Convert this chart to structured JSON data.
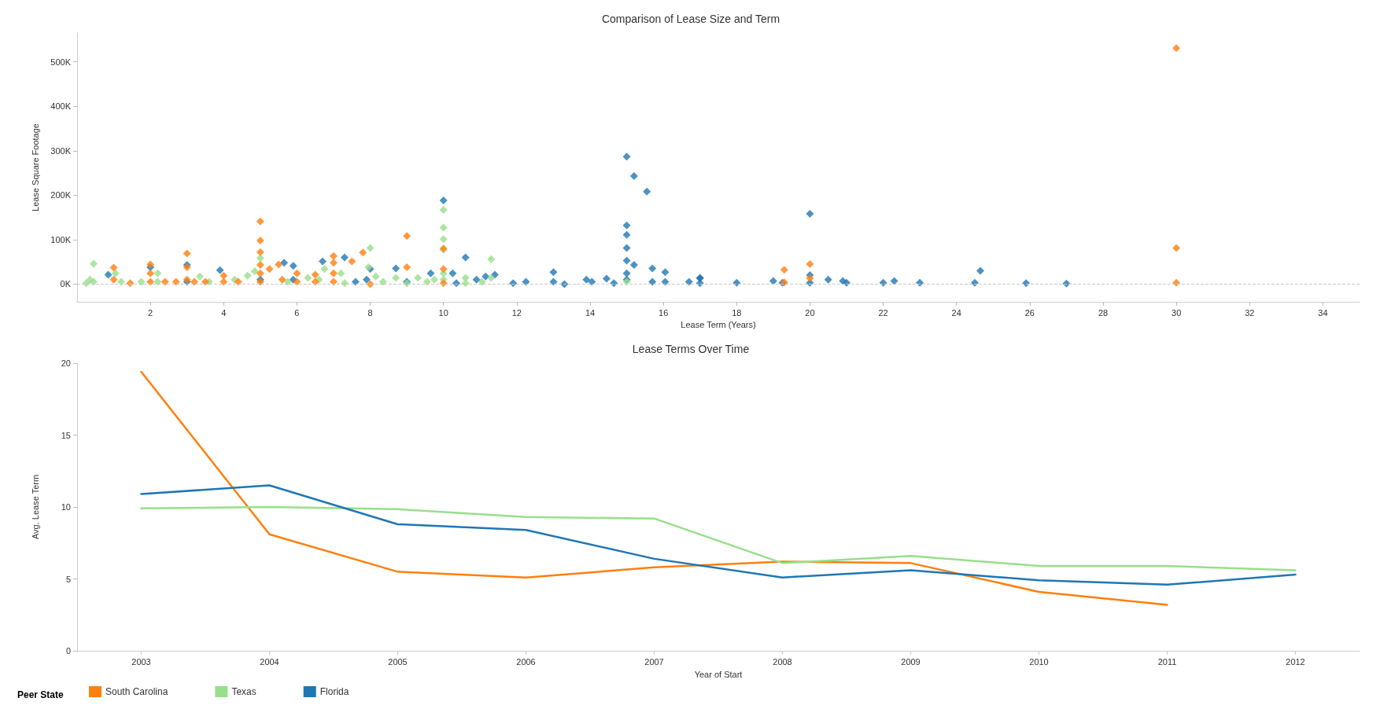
{
  "chart_data": [
    {
      "type": "scatter",
      "title": "Comparison of Lease Size and Term",
      "xlabel": "Lease Term (Years)",
      "ylabel": "Lease Square Footage",
      "marker": "diamond",
      "grid": false,
      "legend": false,
      "ref_lines": [
        {
          "axis": "y",
          "value": 0,
          "line_style": "dashed",
          "color": "#c8c8c8"
        }
      ],
      "xlim": [
        0,
        35
      ],
      "xticks": [
        2,
        4,
        6,
        8,
        10,
        12,
        14,
        16,
        18,
        20,
        22,
        24,
        26,
        28,
        30,
        32,
        34
      ],
      "ylim": [
        -40000,
        565000
      ],
      "yticks": [
        {
          "value": 0,
          "label": "0K"
        },
        {
          "value": 100000,
          "label": "100K"
        },
        {
          "value": 200000,
          "label": "200K"
        },
        {
          "value": 300000,
          "label": "300K"
        },
        {
          "value": 400000,
          "label": "400K"
        },
        {
          "value": 500000,
          "label": "500K"
        }
      ],
      "series": [
        {
          "color": "#1f77b4",
          "x": [
            0.85,
            2,
            3,
            3,
            3.9,
            5,
            5.65,
            5.9,
            5.9,
            6.7,
            7.3,
            7.6,
            8,
            7.9,
            8.7,
            9,
            9.65,
            10,
            10.25,
            10.35,
            10.6,
            10.9,
            11.15,
            11.4,
            11.9,
            12.25,
            13,
            13,
            13.3,
            13.9,
            14.05,
            14.45,
            14.65,
            15,
            15.2,
            15.55,
            15,
            15,
            15,
            15,
            15.2,
            15,
            15,
            15.7,
            15.7,
            16.05,
            16.05,
            16.7,
            17,
            17,
            17,
            18,
            19,
            19.25,
            20,
            20,
            20,
            20.5,
            20.9,
            21,
            22,
            22.3,
            23,
            24.5,
            24.65,
            25.9,
            27
          ],
          "values": [
            21000,
            38000,
            43000,
            5000,
            31000,
            10000,
            48000,
            41000,
            10000,
            51000,
            60000,
            5000,
            34000,
            10000,
            35000,
            5000,
            24000,
            188000,
            24000,
            2000,
            60000,
            10000,
            17000,
            21000,
            2000,
            5000,
            27000,
            5000,
            0,
            10000,
            5000,
            12000,
            2000,
            287000,
            243000,
            208000,
            132000,
            111000,
            81000,
            53000,
            43000,
            24000,
            10000,
            35000,
            5000,
            27000,
            5000,
            5000,
            14000,
            13000,
            2000,
            3000,
            7000,
            3000,
            158000,
            20000,
            3000,
            10000,
            7000,
            3000,
            3000,
            7000,
            3000,
            3000,
            30000,
            2000,
            1000
          ]
        },
        {
          "color": "#98df8a",
          "x": [
            0.25,
            0.35,
            0.45,
            0.45,
            1.05,
            1.2,
            1.75,
            2.2,
            2.2,
            3.35,
            3.6,
            4.3,
            4.65,
            4.85,
            5,
            5.75,
            6.3,
            6.6,
            6.75,
            7.2,
            7.3,
            8,
            7.95,
            8.15,
            8.35,
            8.7,
            9,
            9.3,
            9.55,
            9.75,
            10,
            10,
            10,
            10,
            10,
            10,
            10.6,
            10.6,
            11.05,
            11.3,
            11.3,
            15
          ],
          "values": [
            2000,
            10000,
            46000,
            5000,
            24000,
            5000,
            5000,
            24000,
            5000,
            17000,
            5000,
            10000,
            19000,
            29000,
            58000,
            5000,
            14000,
            10000,
            34000,
            24000,
            2000,
            81000,
            38000,
            17000,
            5000,
            14000,
            2000,
            14000,
            5000,
            10000,
            167000,
            127000,
            101000,
            77000,
            24000,
            10000,
            14000,
            2000,
            5000,
            56000,
            14000,
            5000
          ]
        },
        {
          "color": "#ff7f0e",
          "x": [
            1,
            1,
            1.45,
            2,
            2,
            2,
            2.4,
            2.7,
            3,
            3,
            3,
            3.2,
            3.5,
            4,
            4,
            4.4,
            5,
            5,
            5,
            5,
            5,
            5,
            5.25,
            5.5,
            5.6,
            6,
            6,
            6.5,
            6.5,
            7,
            7,
            7,
            7,
            7.5,
            7.8,
            8,
            9,
            9,
            10,
            10,
            10,
            19.3,
            19.3,
            20,
            20,
            30,
            30,
            30
          ],
          "values": [
            37000,
            10000,
            2000,
            44000,
            24000,
            5000,
            5000,
            5000,
            69000,
            38000,
            10000,
            5000,
            5000,
            19000,
            5000,
            5000,
            141000,
            98000,
            72000,
            43000,
            24000,
            5000,
            34000,
            44000,
            10000,
            24000,
            5000,
            21000,
            5000,
            63000,
            48000,
            24000,
            5000,
            51000,
            71000,
            0,
            108000,
            38000,
            80000,
            34000,
            2000,
            32000,
            4000,
            45000,
            13000,
            531000,
            81000,
            3000
          ]
        }
      ]
    },
    {
      "type": "line",
      "title": "Lease Terms Over Time",
      "xlabel": "Year of Start",
      "ylabel": "Avg. Lease Term",
      "legend": "bottom",
      "legend_title": "Peer State",
      "grid": false,
      "marker": "none",
      "categories": [
        "2003",
        "2004",
        "2005",
        "2006",
        "2007",
        "2008",
        "2009",
        "2010",
        "2011",
        "2012"
      ],
      "ylim": [
        0,
        20
      ],
      "yticks": [
        0,
        5,
        10,
        15,
        20
      ],
      "series": [
        {
          "name": "South Carolina",
          "color": "#ff7f0e",
          "values": [
            19.4,
            8.1,
            5.5,
            5.1,
            5.8,
            6.2,
            6.1,
            4.1,
            3.2,
            null
          ]
        },
        {
          "name": "Texas",
          "color": "#98df8a",
          "values": [
            9.9,
            10.0,
            9.85,
            9.3,
            9.2,
            6.1,
            6.6,
            5.9,
            5.9,
            5.6
          ]
        },
        {
          "name": "Florida",
          "color": "#1f77b4",
          "values": [
            10.9,
            11.5,
            8.8,
            8.4,
            6.4,
            5.1,
            5.6,
            4.9,
            4.6,
            5.3
          ]
        }
      ]
    }
  ]
}
